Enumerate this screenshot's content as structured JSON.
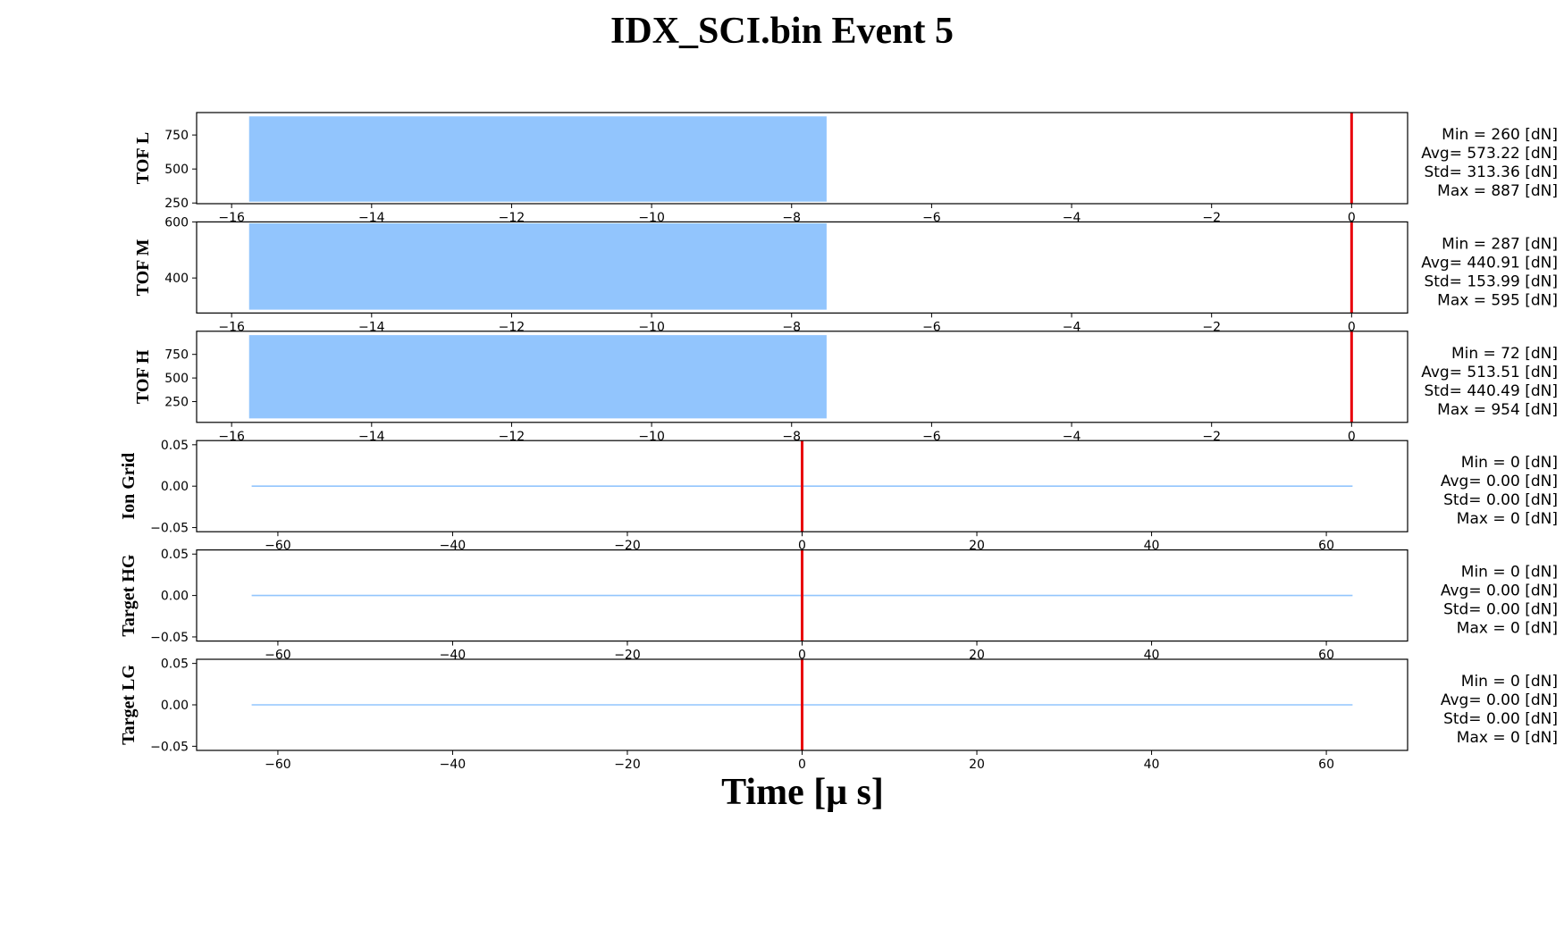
{
  "title": "IDX_SCI.bin Event 5",
  "chart_data": [
    {
      "type": "area",
      "ylabel": "TOF L",
      "xlim": [
        -16.5,
        0.8
      ],
      "ylim": [
        245,
        915
      ],
      "xticks": [
        -16,
        -14,
        -12,
        -10,
        -8,
        -6,
        -4,
        -2,
        0
      ],
      "xtick_labels": [
        "−16",
        "−14",
        "−12",
        "−10",
        "−8",
        "−6",
        "−4",
        "−2",
        "0"
      ],
      "yticks": [
        250,
        500,
        750
      ],
      "ytick_labels": [
        "250",
        "500",
        "750"
      ],
      "series": [
        {
          "x_start": -15.75,
          "x_end": -7.5,
          "y_min": 260,
          "y_max": 887
        }
      ],
      "marker_x": 0,
      "stats": [
        "Min = 260 [dN]",
        "Avg= 573.22 [dN]",
        "Std= 313.36 [dN]",
        "Max = 887 [dN]"
      ]
    },
    {
      "type": "area",
      "ylabel": "TOF M",
      "xlim": [
        -16.5,
        0.8
      ],
      "ylim": [
        275,
        600
      ],
      "xticks": [
        -16,
        -14,
        -12,
        -10,
        -8,
        -6,
        -4,
        -2,
        0
      ],
      "xtick_labels": [
        "−16",
        "−14",
        "−12",
        "−10",
        "−8",
        "−6",
        "−4",
        "−2",
        "0"
      ],
      "yticks": [
        400,
        600
      ],
      "ytick_labels": [
        "400",
        "600"
      ],
      "series": [
        {
          "x_start": -15.75,
          "x_end": -7.5,
          "y_min": 287,
          "y_max": 595
        }
      ],
      "marker_x": 0,
      "stats": [
        "Min = 287 [dN]",
        "Avg= 440.91 [dN]",
        "Std= 153.99 [dN]",
        "Max = 595 [dN]"
      ]
    },
    {
      "type": "area",
      "ylabel": "TOF H",
      "xlim": [
        -16.5,
        0.8
      ],
      "ylim": [
        30,
        995
      ],
      "xticks": [
        -16,
        -14,
        -12,
        -10,
        -8,
        -6,
        -4,
        -2,
        0
      ],
      "xtick_labels": [
        "−16",
        "−14",
        "−12",
        "−10",
        "−8",
        "−6",
        "−4",
        "−2",
        "0"
      ],
      "yticks": [
        250,
        500,
        750
      ],
      "ytick_labels": [
        "250",
        "500",
        "750"
      ],
      "series": [
        {
          "x_start": -15.75,
          "x_end": -7.5,
          "y_min": 72,
          "y_max": 954
        }
      ],
      "marker_x": 0,
      "stats": [
        "Min = 72 [dN]",
        "Avg= 513.51 [dN]",
        "Std= 440.49 [dN]",
        "Max = 954 [dN]"
      ]
    },
    {
      "type": "line",
      "ylabel": "Ion Grid",
      "xlim": [
        -69.3,
        69.3
      ],
      "ylim": [
        -0.055,
        0.055
      ],
      "xticks": [
        -60,
        -40,
        -20,
        0,
        20,
        40,
        60
      ],
      "xtick_labels": [
        "−60",
        "−40",
        "−20",
        "0",
        "20",
        "40",
        "60"
      ],
      "yticks": [
        0.05,
        0.0,
        -0.05
      ],
      "ytick_labels": [
        "0.05",
        "0.00",
        "−0.05"
      ],
      "series": [
        {
          "x": [
            -63,
            63
          ],
          "y": [
            0,
            0
          ]
        }
      ],
      "marker_x": 0,
      "stats": [
        "Min = 0 [dN]",
        "Avg= 0.00 [dN]",
        "Std= 0.00 [dN]",
        "Max = 0 [dN]"
      ]
    },
    {
      "type": "line",
      "ylabel": "Target HG",
      "xlim": [
        -69.3,
        69.3
      ],
      "ylim": [
        -0.055,
        0.055
      ],
      "xticks": [
        -60,
        -40,
        -20,
        0,
        20,
        40,
        60
      ],
      "xtick_labels": [
        "−60",
        "−40",
        "−20",
        "0",
        "20",
        "40",
        "60"
      ],
      "yticks": [
        0.05,
        0.0,
        -0.05
      ],
      "ytick_labels": [
        "0.05",
        "0.00",
        "−0.05"
      ],
      "series": [
        {
          "x": [
            -63,
            63
          ],
          "y": [
            0,
            0
          ]
        }
      ],
      "marker_x": 0,
      "stats": [
        "Min = 0 [dN]",
        "Avg= 0.00 [dN]",
        "Std= 0.00 [dN]",
        "Max = 0 [dN]"
      ]
    },
    {
      "type": "line",
      "ylabel": "Target LG",
      "xlim": [
        -69.3,
        69.3
      ],
      "ylim": [
        -0.055,
        0.055
      ],
      "xticks": [
        -60,
        -40,
        -20,
        0,
        20,
        40,
        60
      ],
      "xtick_labels": [
        "−60",
        "−40",
        "−20",
        "0",
        "20",
        "40",
        "60"
      ],
      "yticks": [
        0.05,
        0.0,
        -0.05
      ],
      "ytick_labels": [
        "0.05",
        "0.00",
        "−0.05"
      ],
      "series": [
        {
          "x": [
            -63,
            63
          ],
          "y": [
            0,
            0
          ]
        }
      ],
      "marker_x": 0,
      "stats": [
        "Min = 0 [dN]",
        "Avg= 0.00 [dN]",
        "Std= 0.00 [dN]",
        "Max = 0 [dN]"
      ]
    }
  ],
  "xlabel": "Time [μ s]",
  "colors": {
    "fill": "#92c5fd",
    "line": "#92c5fd",
    "marker": "#e8000b",
    "axis": "#000000"
  }
}
